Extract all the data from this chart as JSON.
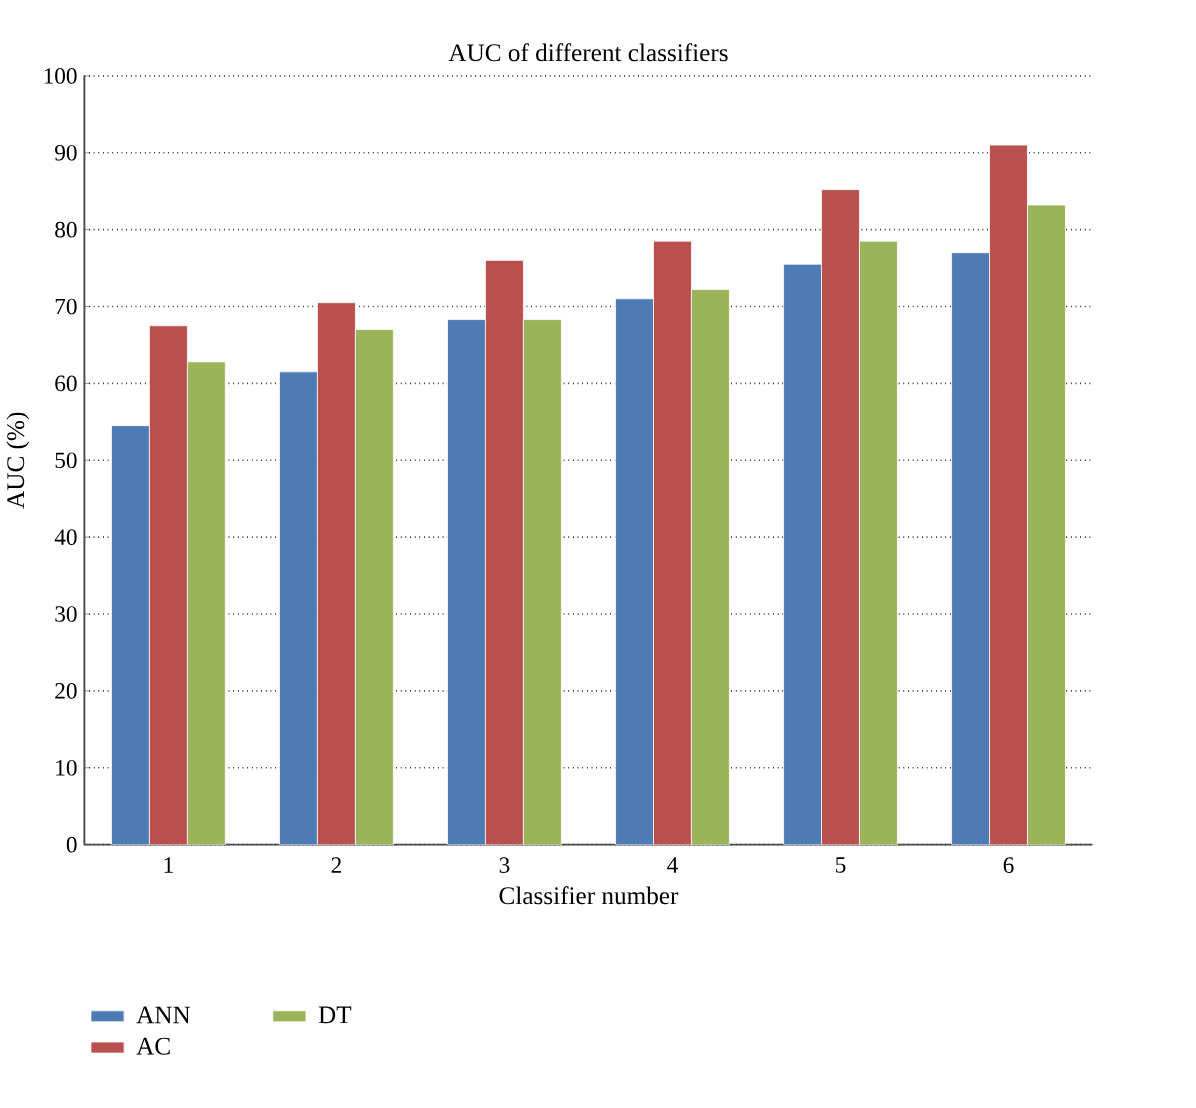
{
  "chart_data": {
    "type": "bar",
    "title": "AUC of different classifiers",
    "xlabel": "Classifier number",
    "ylabel": "AUC (%)",
    "categories": [
      "1",
      "2",
      "3",
      "4",
      "5",
      "6"
    ],
    "series": [
      {
        "name": "ANN",
        "color": "#4f7bb5",
        "values": [
          54.5,
          61.5,
          68.3,
          71,
          75.5,
          77
        ]
      },
      {
        "name": "AC",
        "color": "#ba504e",
        "values": [
          67.5,
          70.5,
          76,
          78.5,
          85.2,
          91
        ]
      },
      {
        "name": "DT",
        "color": "#9ab45a",
        "values": [
          62.8,
          67,
          68.3,
          72.2,
          78.5,
          83.2
        ]
      }
    ],
    "ylim": [
      0,
      100
    ],
    "yticks": [
      0,
      10,
      20,
      30,
      40,
      50,
      60,
      70,
      80,
      90,
      100
    ],
    "grid": "y",
    "legend": "bottom left"
  }
}
